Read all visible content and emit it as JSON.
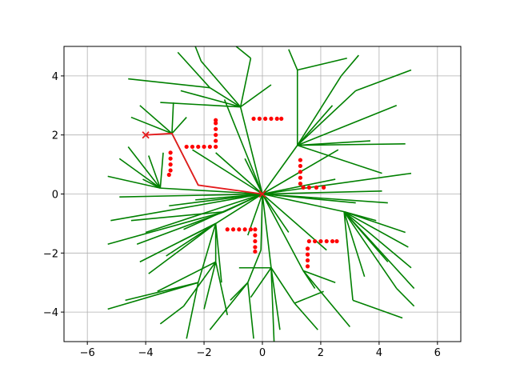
{
  "chart_data": {
    "type": "scatter",
    "title": "",
    "xlabel": "",
    "ylabel": "",
    "xlim": [
      -6.8,
      6.8
    ],
    "ylim": [
      -5,
      5
    ],
    "grid": true,
    "x_ticks": [
      -6,
      -4,
      -2,
      0,
      2,
      4,
      6
    ],
    "y_ticks": [
      -4,
      -2,
      0,
      2,
      4
    ],
    "x_tick_labels": [
      "−6",
      "−4",
      "−2",
      "0",
      "2",
      "4",
      "6"
    ],
    "y_tick_labels": [
      "−4",
      "−2",
      "0",
      "2",
      "4"
    ],
    "colors": {
      "tree": "#008000",
      "path": "#e41a1c",
      "obstacle": "#ff0000",
      "grid": "#b0b0b0",
      "axes": "#000000"
    },
    "start": [
      0,
      0
    ],
    "goal": [
      -4,
      2
    ],
    "path": [
      [
        0,
        0
      ],
      [
        -2.2,
        0.3
      ],
      [
        -3.1,
        2.05
      ],
      [
        -4,
        2
      ]
    ],
    "obstacles": [
      [
        [
          -3.2,
          0.65
        ],
        [
          -3.15,
          0.8
        ],
        [
          -3.15,
          1.0
        ],
        [
          -3.15,
          1.2
        ],
        [
          -3.15,
          1.4
        ]
      ],
      [
        [
          -2.6,
          1.6
        ],
        [
          -2.4,
          1.6
        ],
        [
          -2.2,
          1.6
        ],
        [
          -2.0,
          1.6
        ],
        [
          -1.8,
          1.6
        ],
        [
          -1.6,
          1.6
        ],
        [
          -1.6,
          1.8
        ],
        [
          -1.6,
          2.0
        ],
        [
          -1.6,
          2.2
        ],
        [
          -1.6,
          2.4
        ],
        [
          -1.6,
          2.5
        ]
      ],
      [
        [
          -0.3,
          2.55
        ],
        [
          -0.1,
          2.55
        ],
        [
          0.1,
          2.55
        ],
        [
          0.3,
          2.55
        ],
        [
          0.5,
          2.55
        ],
        [
          0.65,
          2.55
        ]
      ],
      [
        [
          1.3,
          1.15
        ],
        [
          1.3,
          0.95
        ],
        [
          1.3,
          0.75
        ],
        [
          1.3,
          0.55
        ],
        [
          1.3,
          0.35
        ],
        [
          1.4,
          0.22
        ],
        [
          1.6,
          0.22
        ],
        [
          1.85,
          0.22
        ],
        [
          2.1,
          0.22
        ]
      ],
      [
        [
          -1.2,
          -1.2
        ],
        [
          -1.0,
          -1.2
        ],
        [
          -0.8,
          -1.2
        ],
        [
          -0.6,
          -1.2
        ],
        [
          -0.4,
          -1.2
        ],
        [
          -0.25,
          -1.2
        ],
        [
          -0.25,
          -1.4
        ],
        [
          -0.25,
          -1.6
        ],
        [
          -0.25,
          -1.8
        ],
        [
          -0.25,
          -1.95
        ]
      ],
      [
        [
          1.55,
          -2.45
        ],
        [
          1.55,
          -2.25
        ],
        [
          1.55,
          -2.05
        ],
        [
          1.55,
          -1.85
        ],
        [
          1.6,
          -1.6
        ],
        [
          1.8,
          -1.6
        ],
        [
          2.0,
          -1.6
        ],
        [
          2.2,
          -1.6
        ],
        [
          2.4,
          -1.6
        ],
        [
          2.55,
          -1.6
        ]
      ]
    ],
    "tree_edges": [
      [
        [
          0,
          0
        ],
        [
          -0.75,
          2.95
        ]
      ],
      [
        [
          -0.75,
          2.95
        ],
        [
          -1.8,
          3.6
        ]
      ],
      [
        [
          -0.75,
          2.95
        ],
        [
          -2.1,
          4.5
        ]
      ],
      [
        [
          -0.75,
          2.95
        ],
        [
          -0.4,
          4.6
        ]
      ],
      [
        [
          -0.75,
          2.95
        ],
        [
          0.3,
          3.7
        ]
      ],
      [
        [
          -0.75,
          2.95
        ],
        [
          -2.8,
          3.5
        ]
      ],
      [
        [
          -1.8,
          3.6
        ],
        [
          -2.9,
          4.8
        ]
      ],
      [
        [
          -1.8,
          3.6
        ],
        [
          -4.6,
          3.9
        ]
      ],
      [
        [
          -0.4,
          4.6
        ],
        [
          -0.9,
          5
        ]
      ],
      [
        [
          -0.75,
          2.95
        ],
        [
          -3.5,
          3.1
        ]
      ],
      [
        [
          -2.1,
          4.5
        ],
        [
          -2.3,
          5
        ]
      ],
      [
        [
          -3.1,
          2.05
        ],
        [
          -3.05,
          3.1
        ]
      ],
      [
        [
          -3.1,
          2.05
        ],
        [
          -4.5,
          2.6
        ]
      ],
      [
        [
          -3.1,
          2.05
        ],
        [
          -4.2,
          3.0
        ]
      ],
      [
        [
          -3.1,
          2.05
        ],
        [
          -2.6,
          2.6
        ]
      ],
      [
        [
          -2.2,
          0.3
        ],
        [
          -3.1,
          2.05
        ]
      ],
      [
        [
          -3.5,
          0.2
        ],
        [
          -4.9,
          1.2
        ]
      ],
      [
        [
          -3.5,
          0.2
        ],
        [
          -5.3,
          0.6
        ]
      ],
      [
        [
          -3.5,
          0.2
        ],
        [
          -4.6,
          1.6
        ]
      ],
      [
        [
          -3.5,
          0.2
        ],
        [
          -3.9,
          1.3
        ]
      ],
      [
        [
          -3.5,
          0.2
        ],
        [
          -3.4,
          1.4
        ]
      ],
      [
        [
          -3.5,
          0.2
        ],
        [
          -4.1,
          0.5
        ]
      ],
      [
        [
          0,
          0
        ],
        [
          -3.5,
          0.2
        ]
      ],
      [
        [
          0,
          0
        ],
        [
          -4.9,
          -0.1
        ]
      ],
      [
        [
          0,
          0
        ],
        [
          -5.2,
          -0.9
        ]
      ],
      [
        [
          0,
          0
        ],
        [
          -4.0,
          -1.3
        ]
      ],
      [
        [
          0,
          0
        ],
        [
          -3.2,
          -0.4
        ]
      ],
      [
        [
          0,
          0
        ],
        [
          -2.3,
          -0.2
        ]
      ],
      [
        [
          0,
          0
        ],
        [
          -1.6,
          1.4
        ]
      ],
      [
        [
          0,
          0
        ],
        [
          -1.3,
          3.2
        ]
      ],
      [
        [
          0,
          0
        ],
        [
          -0.6,
          1.2
        ]
      ],
      [
        [
          0,
          0
        ],
        [
          -2.4,
          1.5
        ]
      ],
      [
        [
          0,
          0
        ],
        [
          1.2,
          1.65
        ]
      ],
      [
        [
          1.2,
          1.65
        ],
        [
          3.2,
          3.5
        ]
      ],
      [
        [
          1.2,
          1.65
        ],
        [
          4.6,
          3.0
        ]
      ],
      [
        [
          1.2,
          1.65
        ],
        [
          3.7,
          1.8
        ]
      ],
      [
        [
          1.2,
          1.65
        ],
        [
          2.7,
          4.0
        ]
      ],
      [
        [
          1.2,
          1.65
        ],
        [
          2.4,
          3.0
        ]
      ],
      [
        [
          1.2,
          1.65
        ],
        [
          1.2,
          4.2
        ]
      ],
      [
        [
          1.2,
          1.65
        ],
        [
          4.9,
          1.7
        ]
      ],
      [
        [
          1.2,
          1.65
        ],
        [
          4.1,
          0.7
        ]
      ],
      [
        [
          1.2,
          4.2
        ],
        [
          2.9,
          4.6
        ]
      ],
      [
        [
          1.2,
          4.2
        ],
        [
          0.9,
          4.9
        ]
      ],
      [
        [
          3.2,
          3.5
        ],
        [
          5.1,
          4.2
        ]
      ],
      [
        [
          2.7,
          4.0
        ],
        [
          3.3,
          4.7
        ]
      ],
      [
        [
          0,
          0
        ],
        [
          2.5,
          0.5
        ]
      ],
      [
        [
          0,
          0
        ],
        [
          4.1,
          0.1
        ]
      ],
      [
        [
          0,
          0
        ],
        [
          5.1,
          0.7
        ]
      ],
      [
        [
          0,
          0
        ],
        [
          3.2,
          -0.3
        ]
      ],
      [
        [
          0,
          0
        ],
        [
          4.3,
          -0.3
        ]
      ],
      [
        [
          0,
          0
        ],
        [
          2.6,
          1.5
        ]
      ],
      [
        [
          0,
          0
        ],
        [
          2.8,
          -0.6
        ]
      ],
      [
        [
          2.8,
          -0.6
        ],
        [
          5.0,
          -1.8
        ]
      ],
      [
        [
          2.8,
          -0.6
        ],
        [
          4.9,
          -1.3
        ]
      ],
      [
        [
          2.8,
          -0.6
        ],
        [
          3.9,
          -0.9
        ]
      ],
      [
        [
          2.8,
          -0.6
        ],
        [
          5.2,
          -3.2
        ]
      ],
      [
        [
          2.8,
          -0.6
        ],
        [
          4.3,
          -2.3
        ]
      ],
      [
        [
          2.8,
          -0.6
        ],
        [
          5.1,
          -2.5
        ]
      ],
      [
        [
          2.8,
          -0.6
        ],
        [
          3.1,
          -3.6
        ]
      ],
      [
        [
          2.8,
          -0.6
        ],
        [
          4.6,
          -3.2
        ]
      ],
      [
        [
          4.6,
          -3.2
        ],
        [
          5.2,
          -3.8
        ]
      ],
      [
        [
          3.1,
          -3.6
        ],
        [
          4.8,
          -4.2
        ]
      ],
      [
        [
          2.8,
          -0.6
        ],
        [
          3.5,
          -2.8
        ]
      ],
      [
        [
          0,
          0
        ],
        [
          1.4,
          -2.6
        ]
      ],
      [
        [
          1.4,
          -2.6
        ],
        [
          1.8,
          -3.2
        ]
      ],
      [
        [
          1.4,
          -2.6
        ],
        [
          3.0,
          -4.5
        ]
      ],
      [
        [
          1.4,
          -2.6
        ],
        [
          2.5,
          -3.0
        ]
      ],
      [
        [
          0,
          0
        ],
        [
          2.2,
          -1.9
        ]
      ],
      [
        [
          0,
          0
        ],
        [
          0.9,
          -1.3
        ]
      ],
      [
        [
          0,
          0
        ],
        [
          0.3,
          -2.5
        ]
      ],
      [
        [
          0.3,
          -2.5
        ],
        [
          0.6,
          -4.6
        ]
      ],
      [
        [
          0.3,
          -2.5
        ],
        [
          1.1,
          -3.7
        ]
      ],
      [
        [
          0.3,
          -2.5
        ],
        [
          -0.8,
          -2.5
        ]
      ],
      [
        [
          0.3,
          -2.5
        ],
        [
          0.4,
          -5.0
        ]
      ],
      [
        [
          0.3,
          -2.5
        ],
        [
          -0.4,
          -3.5
        ]
      ],
      [
        [
          1.1,
          -3.7
        ],
        [
          2.1,
          -3.3
        ]
      ],
      [
        [
          1.1,
          -3.7
        ],
        [
          1.9,
          -4.6
        ]
      ],
      [
        [
          0,
          0
        ],
        [
          -0.05,
          -1.9
        ]
      ],
      [
        [
          -0.05,
          -1.9
        ],
        [
          -0.5,
          -3.0
        ]
      ],
      [
        [
          -0.5,
          -3.0
        ],
        [
          -0.3,
          -4.9
        ]
      ],
      [
        [
          -0.5,
          -3.0
        ],
        [
          -1.8,
          -4.6
        ]
      ],
      [
        [
          -0.5,
          -3.0
        ],
        [
          -1.1,
          -3.6
        ]
      ],
      [
        [
          0,
          0
        ],
        [
          -1.6,
          -1.0
        ]
      ],
      [
        [
          -1.6,
          -1.0
        ],
        [
          -1.6,
          -2.3
        ]
      ],
      [
        [
          -1.6,
          -1.0
        ],
        [
          -2.8,
          -1.6
        ]
      ],
      [
        [
          -1.6,
          -1.0
        ],
        [
          -3.3,
          -2.1
        ]
      ],
      [
        [
          -1.6,
          -1.0
        ],
        [
          -4.2,
          -2.3
        ]
      ],
      [
        [
          -1.6,
          -1.0
        ],
        [
          -1.4,
          -3.0
        ]
      ],
      [
        [
          -1.6,
          -2.3
        ],
        [
          -2.0,
          -3.9
        ]
      ],
      [
        [
          -1.6,
          -2.3
        ],
        [
          -2.7,
          -3.8
        ]
      ],
      [
        [
          -1.6,
          -2.3
        ],
        [
          -3.6,
          -3.3
        ]
      ],
      [
        [
          -1.6,
          -2.3
        ],
        [
          -1.2,
          -4.1
        ]
      ],
      [
        [
          -2.7,
          -3.8
        ],
        [
          -3.5,
          -4.4
        ]
      ],
      [
        [
          -1.6,
          -1.0
        ],
        [
          -2.2,
          -3.0
        ]
      ],
      [
        [
          -2.2,
          -3.0
        ],
        [
          -4.7,
          -3.6
        ]
      ],
      [
        [
          -2.2,
          -3.0
        ],
        [
          -5.3,
          -3.9
        ]
      ],
      [
        [
          -2.2,
          -3.0
        ],
        [
          -2.6,
          -4.9
        ]
      ],
      [
        [
          -1.6,
          -1.0
        ],
        [
          -3.9,
          -2.7
        ]
      ],
      [
        [
          0,
          0
        ],
        [
          -1.3,
          -0.6
        ]
      ],
      [
        [
          -1.3,
          -0.6
        ],
        [
          -4.3,
          -1.7
        ]
      ],
      [
        [
          -1.3,
          -0.6
        ],
        [
          -5.3,
          -1.7
        ]
      ],
      [
        [
          -1.3,
          -0.6
        ],
        [
          -4.5,
          -0.9
        ]
      ],
      [
        [
          0,
          0
        ],
        [
          -0.5,
          -1.4
        ]
      ],
      [
        [
          0,
          0
        ],
        [
          -2.7,
          -1.2
        ]
      ]
    ]
  }
}
